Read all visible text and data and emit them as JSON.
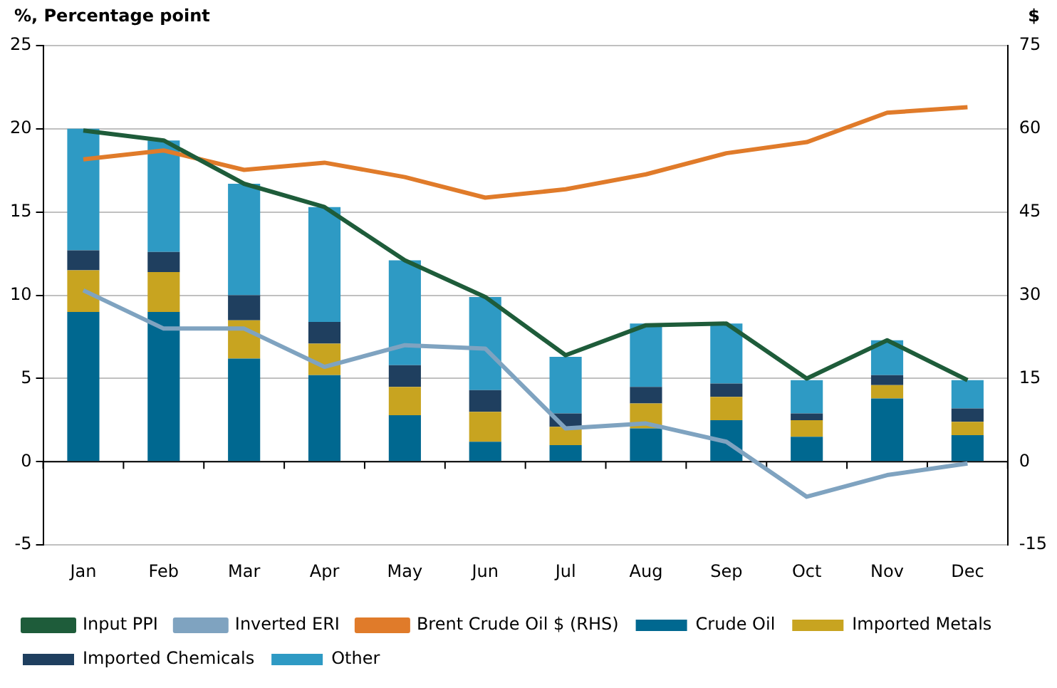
{
  "chart_data": {
    "type": "bar",
    "stacked": true,
    "ylabel": "%, Percentage point",
    "y2label": "$",
    "categories": [
      "Jan",
      "Feb",
      "Mar",
      "Apr",
      "May",
      "Jun",
      "Jul",
      "Aug",
      "Sep",
      "Oct",
      "Nov",
      "Dec"
    ],
    "series": [
      {
        "name": "Crude Oil",
        "color": "#006890",
        "values": [
          9.0,
          9.0,
          6.2,
          5.2,
          2.8,
          1.2,
          1.0,
          2.0,
          2.5,
          1.5,
          3.8,
          1.6
        ]
      },
      {
        "name": "Imported Metals",
        "color": "#c8a420",
        "values": [
          2.5,
          2.4,
          2.3,
          1.9,
          1.7,
          1.8,
          1.1,
          1.5,
          1.4,
          1.0,
          0.8,
          0.8
        ]
      },
      {
        "name": "Imported Chemicals",
        "color": "#1f3f5f",
        "values": [
          1.2,
          1.2,
          1.5,
          1.3,
          1.3,
          1.3,
          0.8,
          1.0,
          0.8,
          0.4,
          0.6,
          0.8
        ]
      },
      {
        "name": "Other",
        "color": "#2e9ac4",
        "values": [
          7.3,
          6.7,
          6.7,
          6.9,
          6.3,
          5.6,
          3.4,
          3.8,
          3.6,
          2.0,
          2.1,
          1.7
        ]
      },
      {
        "name": "Input PPI",
        "type": "line",
        "color": "#1e5c3a",
        "values": [
          19.9,
          19.3,
          16.7,
          15.3,
          12.1,
          9.9,
          6.4,
          8.2,
          8.3,
          5.0,
          7.3,
          4.9
        ]
      },
      {
        "name": "Inverted ERI",
        "type": "line",
        "color": "#7fa3c0",
        "values": [
          10.3,
          8.0,
          8.0,
          5.7,
          7.0,
          6.8,
          2.0,
          2.3,
          1.2,
          -2.1,
          -0.8,
          -0.1
        ]
      },
      {
        "name": "Brent Crude Oil $ (RHS)",
        "type": "line",
        "axis": "y2",
        "color": "#e07b2a",
        "values": [
          54.5,
          56.1,
          52.6,
          53.9,
          51.3,
          47.6,
          49.1,
          51.8,
          55.6,
          57.6,
          62.9,
          63.9
        ]
      }
    ],
    "ylim": [
      -5,
      25
    ],
    "yticks": [
      -5,
      0,
      5,
      10,
      15,
      20,
      25
    ],
    "y2lim": [
      -15,
      75
    ],
    "y2ticks": [
      -15,
      0,
      15,
      30,
      45,
      60,
      75
    ],
    "grid": "y",
    "legend": "bottom",
    "marker": "none"
  }
}
